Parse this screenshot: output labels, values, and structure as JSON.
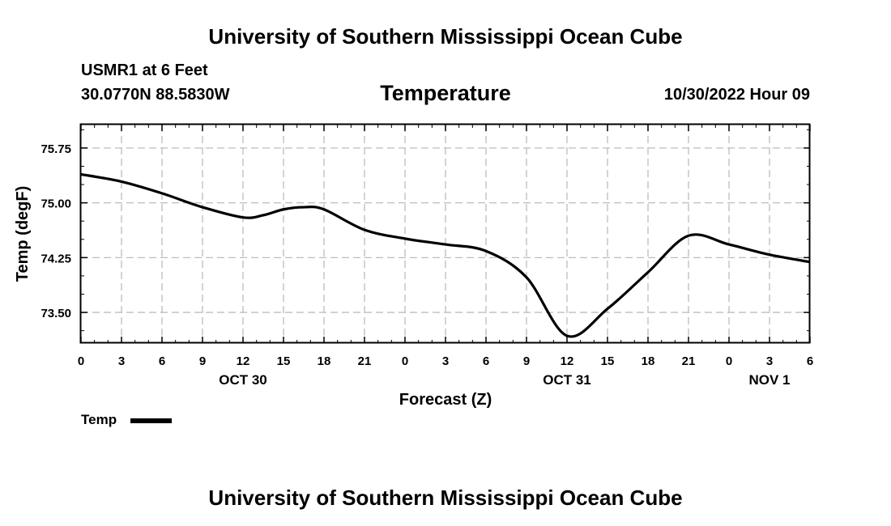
{
  "header": {
    "top_title": "University of Southern Mississippi Ocean Cube",
    "station": "USMR1 at 6 Feet",
    "coords": "30.0770N  88.5830W",
    "datetime": "10/30/2022 Hour 09",
    "bottom_title": "University of Southern Mississippi Ocean Cube"
  },
  "colors": {
    "line": "#000000",
    "grid": "#bdbdbd",
    "frame": "#000000"
  },
  "chart_data": {
    "type": "line",
    "title": "Temperature",
    "xlabel": "Forecast (Z)",
    "ylabel": "Temp (degF)",
    "xlim": [
      0,
      54
    ],
    "ylim": [
      73.08,
      76.07
    ],
    "x_ticks": [
      0,
      3,
      6,
      9,
      12,
      15,
      18,
      21,
      24,
      27,
      30,
      33,
      36,
      39,
      42,
      45,
      48,
      51,
      54
    ],
    "x_tick_labels": [
      "0",
      "3",
      "6",
      "9",
      "12",
      "15",
      "18",
      "21",
      "0",
      "3",
      "6",
      "9",
      "12",
      "15",
      "18",
      "21",
      "0",
      "3",
      "6"
    ],
    "date_labels": [
      {
        "x": 12,
        "label": "OCT 30"
      },
      {
        "x": 36,
        "label": "OCT 31"
      },
      {
        "x": 51,
        "label": "NOV 1"
      }
    ],
    "y_ticks": [
      73.5,
      74.25,
      75.0,
      75.75
    ],
    "y_tick_labels": [
      "73.50",
      "74.25",
      "75.00",
      "75.75"
    ],
    "grid": true,
    "series": [
      {
        "name": "Temp",
        "x": [
          0,
          3,
          6,
          9,
          12,
          13.5,
          15,
          16.5,
          18,
          21,
          24,
          27,
          30,
          33,
          36,
          39,
          42,
          45,
          48,
          51,
          54
        ],
        "values": [
          75.39,
          75.29,
          75.13,
          74.94,
          74.8,
          74.83,
          74.91,
          74.94,
          74.91,
          74.63,
          74.51,
          74.43,
          74.34,
          73.98,
          73.18,
          73.55,
          74.05,
          74.55,
          74.43,
          74.29,
          74.19
        ]
      }
    ],
    "legend": {
      "position": "bottom-left",
      "entries": [
        "Temp"
      ]
    }
  }
}
